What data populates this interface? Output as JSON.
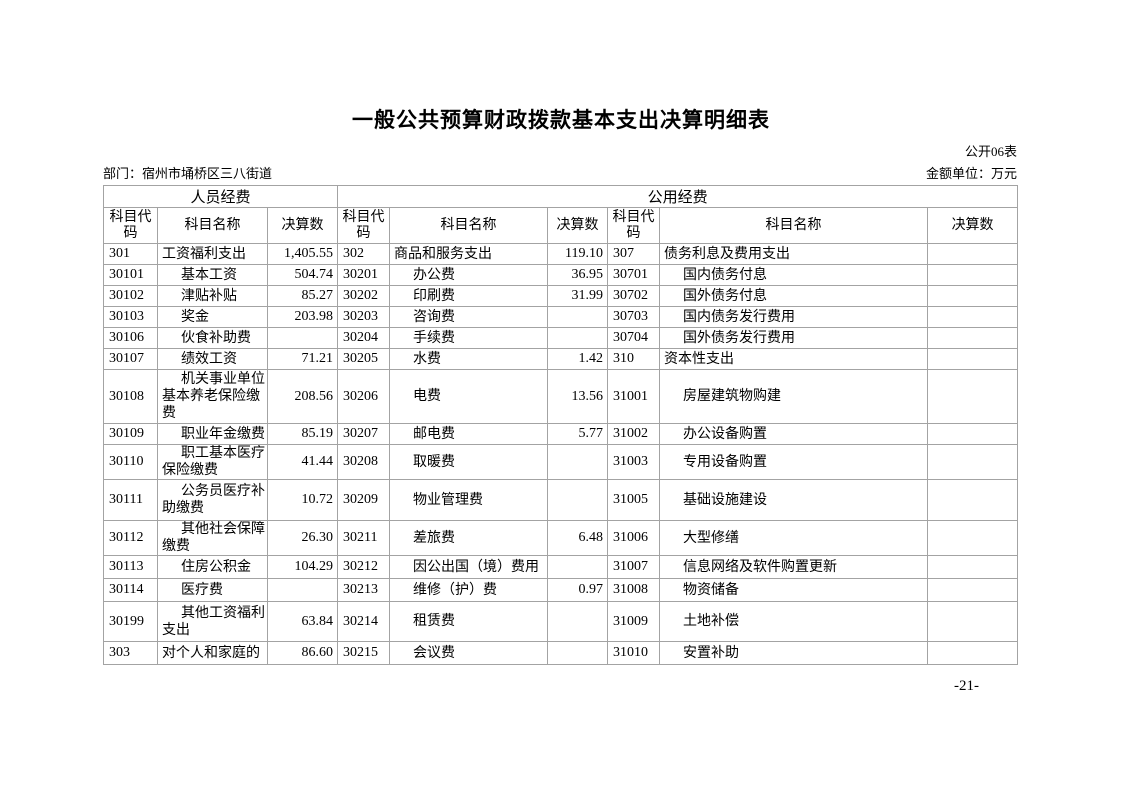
{
  "header": {
    "title": "一般公共预算财政拨款基本支出决算明细表",
    "form_label": "公开06表",
    "department_label": "部门：宿州市埇桥区三八街道",
    "unit_label": "金额单位：万元"
  },
  "colors": {
    "text": "#000000",
    "border": "#a3a3a3",
    "background": "#ffffff"
  },
  "table": {
    "group_headers": {
      "personnel": "人员经费",
      "public": "公用经费"
    },
    "column_headers": {
      "code": "科目代码",
      "name": "科目名称",
      "amount": "决算数"
    },
    "rows": [
      [
        {
          "code": "301",
          "name": "工资福利支出",
          "amount": "1,405.55",
          "indent": false
        },
        {
          "code": "302",
          "name": "商品和服务支出",
          "amount": "119.10",
          "indent": false
        },
        {
          "code": "307",
          "name": "债务利息及费用支出",
          "amount": "",
          "indent": false
        }
      ],
      [
        {
          "code": "30101",
          "name": "基本工资",
          "amount": "504.74",
          "indent": true
        },
        {
          "code": "30201",
          "name": "办公费",
          "amount": "36.95",
          "indent": true
        },
        {
          "code": "30701",
          "name": "国内债务付息",
          "amount": "",
          "indent": true
        }
      ],
      [
        {
          "code": "30102",
          "name": "津贴补贴",
          "amount": "85.27",
          "indent": true
        },
        {
          "code": "30202",
          "name": "印刷费",
          "amount": "31.99",
          "indent": true
        },
        {
          "code": "30702",
          "name": "国外债务付息",
          "amount": "",
          "indent": true
        }
      ],
      [
        {
          "code": "30103",
          "name": "奖金",
          "amount": "203.98",
          "indent": true
        },
        {
          "code": "30203",
          "name": "咨询费",
          "amount": "",
          "indent": true
        },
        {
          "code": "30703",
          "name": "国内债务发行费用",
          "amount": "",
          "indent": true
        }
      ],
      [
        {
          "code": "30106",
          "name": "伙食补助费",
          "amount": "",
          "indent": true
        },
        {
          "code": "30204",
          "name": "手续费",
          "amount": "",
          "indent": true
        },
        {
          "code": "30704",
          "name": "国外债务发行费用",
          "amount": "",
          "indent": true
        }
      ],
      [
        {
          "code": "30107",
          "name": "绩效工资",
          "amount": "71.21",
          "indent": true
        },
        {
          "code": "30205",
          "name": "水费",
          "amount": "1.42",
          "indent": true
        },
        {
          "code": "310",
          "name": "资本性支出",
          "amount": "",
          "indent": false
        }
      ],
      [
        {
          "code": "30108",
          "name": "机关事业单位基本养老保险缴费",
          "amount": "208.56",
          "indent": true
        },
        {
          "code": "30206",
          "name": "电费",
          "amount": "13.56",
          "indent": true
        },
        {
          "code": "31001",
          "name": "房屋建筑物购建",
          "amount": "",
          "indent": true
        }
      ],
      [
        {
          "code": "30109",
          "name": "职业年金缴费",
          "amount": "85.19",
          "indent": true
        },
        {
          "code": "30207",
          "name": "邮电费",
          "amount": "5.77",
          "indent": true
        },
        {
          "code": "31002",
          "name": "办公设备购置",
          "amount": "",
          "indent": true
        }
      ],
      [
        {
          "code": "30110",
          "name": "职工基本医疗保险缴费",
          "amount": "41.44",
          "indent": true
        },
        {
          "code": "30208",
          "name": "取暖费",
          "amount": "",
          "indent": true
        },
        {
          "code": "31003",
          "name": "专用设备购置",
          "amount": "",
          "indent": true
        }
      ],
      [
        {
          "code": "30111",
          "name": "公务员医疗补助缴费",
          "amount": "10.72",
          "indent": true
        },
        {
          "code": "30209",
          "name": "物业管理费",
          "amount": "",
          "indent": true
        },
        {
          "code": "31005",
          "name": "基础设施建设",
          "amount": "",
          "indent": true
        }
      ],
      [
        {
          "code": "30112",
          "name": "其他社会保障缴费",
          "amount": "26.30",
          "indent": true
        },
        {
          "code": "30211",
          "name": "差旅费",
          "amount": "6.48",
          "indent": true
        },
        {
          "code": "31006",
          "name": "大型修缮",
          "amount": "",
          "indent": true
        }
      ],
      [
        {
          "code": "30113",
          "name": "住房公积金",
          "amount": "104.29",
          "indent": true
        },
        {
          "code": "30212",
          "name": "因公出国（境）费用",
          "amount": "",
          "indent": true
        },
        {
          "code": "31007",
          "name": "信息网络及软件购置更新",
          "amount": "",
          "indent": true
        }
      ],
      [
        {
          "code": "30114",
          "name": "医疗费",
          "amount": "",
          "indent": true
        },
        {
          "code": "30213",
          "name": "维修（护）费",
          "amount": "0.97",
          "indent": true
        },
        {
          "code": "31008",
          "name": "物资储备",
          "amount": "",
          "indent": true
        }
      ],
      [
        {
          "code": "30199",
          "name": "其他工资福利支出",
          "amount": "63.84",
          "indent": true
        },
        {
          "code": "30214",
          "name": "租赁费",
          "amount": "",
          "indent": true
        },
        {
          "code": "31009",
          "name": "土地补偿",
          "amount": "",
          "indent": true
        }
      ],
      [
        {
          "code": "303",
          "name": "对个人和家庭的",
          "amount": "86.60",
          "indent": false
        },
        {
          "code": "30215",
          "name": "会议费",
          "amount": "",
          "indent": true
        },
        {
          "code": "31010",
          "name": "安置补助",
          "amount": "",
          "indent": true
        }
      ]
    ]
  },
  "footer": {
    "page_number": "-21-"
  }
}
